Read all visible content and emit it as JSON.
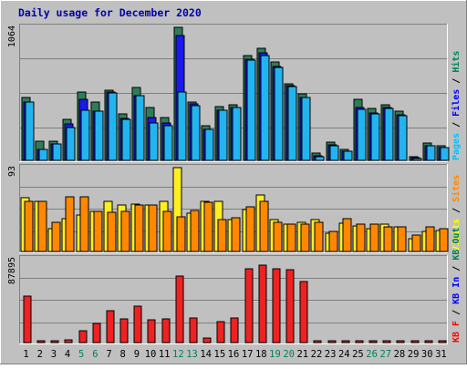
{
  "chart_data": {
    "type": "bar",
    "title": "Daily usage for December 2020",
    "categories": [
      "1",
      "2",
      "3",
      "4",
      "5",
      "6",
      "7",
      "8",
      "9",
      "10",
      "11",
      "12",
      "13",
      "14",
      "15",
      "16",
      "17",
      "18",
      "19",
      "20",
      "21",
      "22",
      "23",
      "24",
      "25",
      "26",
      "27",
      "28",
      "29",
      "30",
      "31"
    ],
    "weekend_days": [
      "5",
      "6",
      "12",
      "13",
      "19",
      "20",
      "26",
      "27"
    ],
    "panels": [
      {
        "id": "top",
        "max_label": "1064",
        "ymax": 1064,
        "right_label": [
          {
            "text": "Pages",
            "color": "#00c0ff"
          },
          {
            "text": " / ",
            "color": "#000000"
          },
          {
            "text": "Files",
            "color": "#0000ff"
          },
          {
            "text": " / ",
            "color": "#000000"
          },
          {
            "text": "Hits",
            "color": "#00805c"
          }
        ],
        "series": [
          {
            "name": "Hits",
            "color": "#2e7d5a",
            "values": [
              500,
              155,
              150,
              330,
              550,
              465,
              560,
              370,
              580,
              425,
              340,
              1064,
              470,
              275,
              430,
              445,
              840,
              900,
              785,
              615,
              530,
              55,
              145,
              85,
              485,
              415,
              445,
              390,
              30,
              135,
              115
            ]
          },
          {
            "name": "Files",
            "color": "#1a1aee",
            "values": [
              470,
              90,
              130,
              290,
              490,
              390,
              545,
              335,
              520,
              340,
              300,
              1000,
              450,
              250,
              400,
              420,
              810,
              860,
              750,
              595,
              505,
              40,
              125,
              75,
              425,
              380,
              420,
              365,
              20,
              120,
              100
            ]
          },
          {
            "name": "Pages",
            "color": "#22b4ee",
            "values": [
              470,
              90,
              130,
              260,
              400,
              390,
              540,
              330,
              520,
              300,
              280,
              550,
              440,
              250,
              400,
              420,
              800,
              840,
              740,
              590,
              500,
              30,
              115,
              70,
              410,
              370,
              415,
              355,
              15,
              120,
              100
            ]
          }
        ]
      },
      {
        "id": "middle",
        "max_label": "93",
        "ymax": 93,
        "right_label": [
          {
            "text": "Visits",
            "color": "#ffff00"
          },
          {
            "text": " / ",
            "color": "#000000"
          },
          {
            "text": "Sites",
            "color": "#ff8800"
          }
        ],
        "series": [
          {
            "name": "Visits",
            "color": "#ffee22",
            "values": [
              60,
              56,
              25,
              36,
              40,
              44,
              56,
              52,
              53,
              52,
              56,
              93,
              42,
              56,
              56,
              35,
              47,
              63,
              35,
              30,
              32,
              35,
              20,
              31,
              28,
              25,
              30,
              27,
              14,
              22,
              23
            ]
          },
          {
            "name": "Sites",
            "color": "#ff8800",
            "values": [
              56,
              56,
              32,
              61,
              61,
              44,
              43,
              44,
              52,
              52,
              44,
              38,
              45,
              55,
              35,
              37,
              50,
              56,
              32,
              30,
              30,
              32,
              22,
              36,
              30,
              30,
              27,
              27,
              18,
              27,
              25
            ]
          }
        ]
      },
      {
        "id": "bottom",
        "max_label": "87895",
        "ymax": 87895,
        "right_label": [
          {
            "text": "KB F",
            "color": "#ff0000"
          },
          {
            "text": " / ",
            "color": "#000000"
          },
          {
            "text": "KB In",
            "color": "#0000ff"
          },
          {
            "text": " / ",
            "color": "#000000"
          },
          {
            "text": "KB Out",
            "color": "#00805c"
          }
        ],
        "series": [
          {
            "name": "KB F",
            "color": "#ee2222",
            "values": [
              48500,
              1500,
              1500,
              2500,
              12000,
              20000,
              33000,
              25000,
              38000,
              24000,
              25000,
              70000,
              26000,
              4500,
              22000,
              26000,
              77000,
              81000,
              77000,
              76000,
              64000,
              1500,
              1500,
              1500,
              1500,
              1500,
              1500,
              1500,
              1500,
              1500,
              1500
            ]
          }
        ]
      }
    ]
  }
}
